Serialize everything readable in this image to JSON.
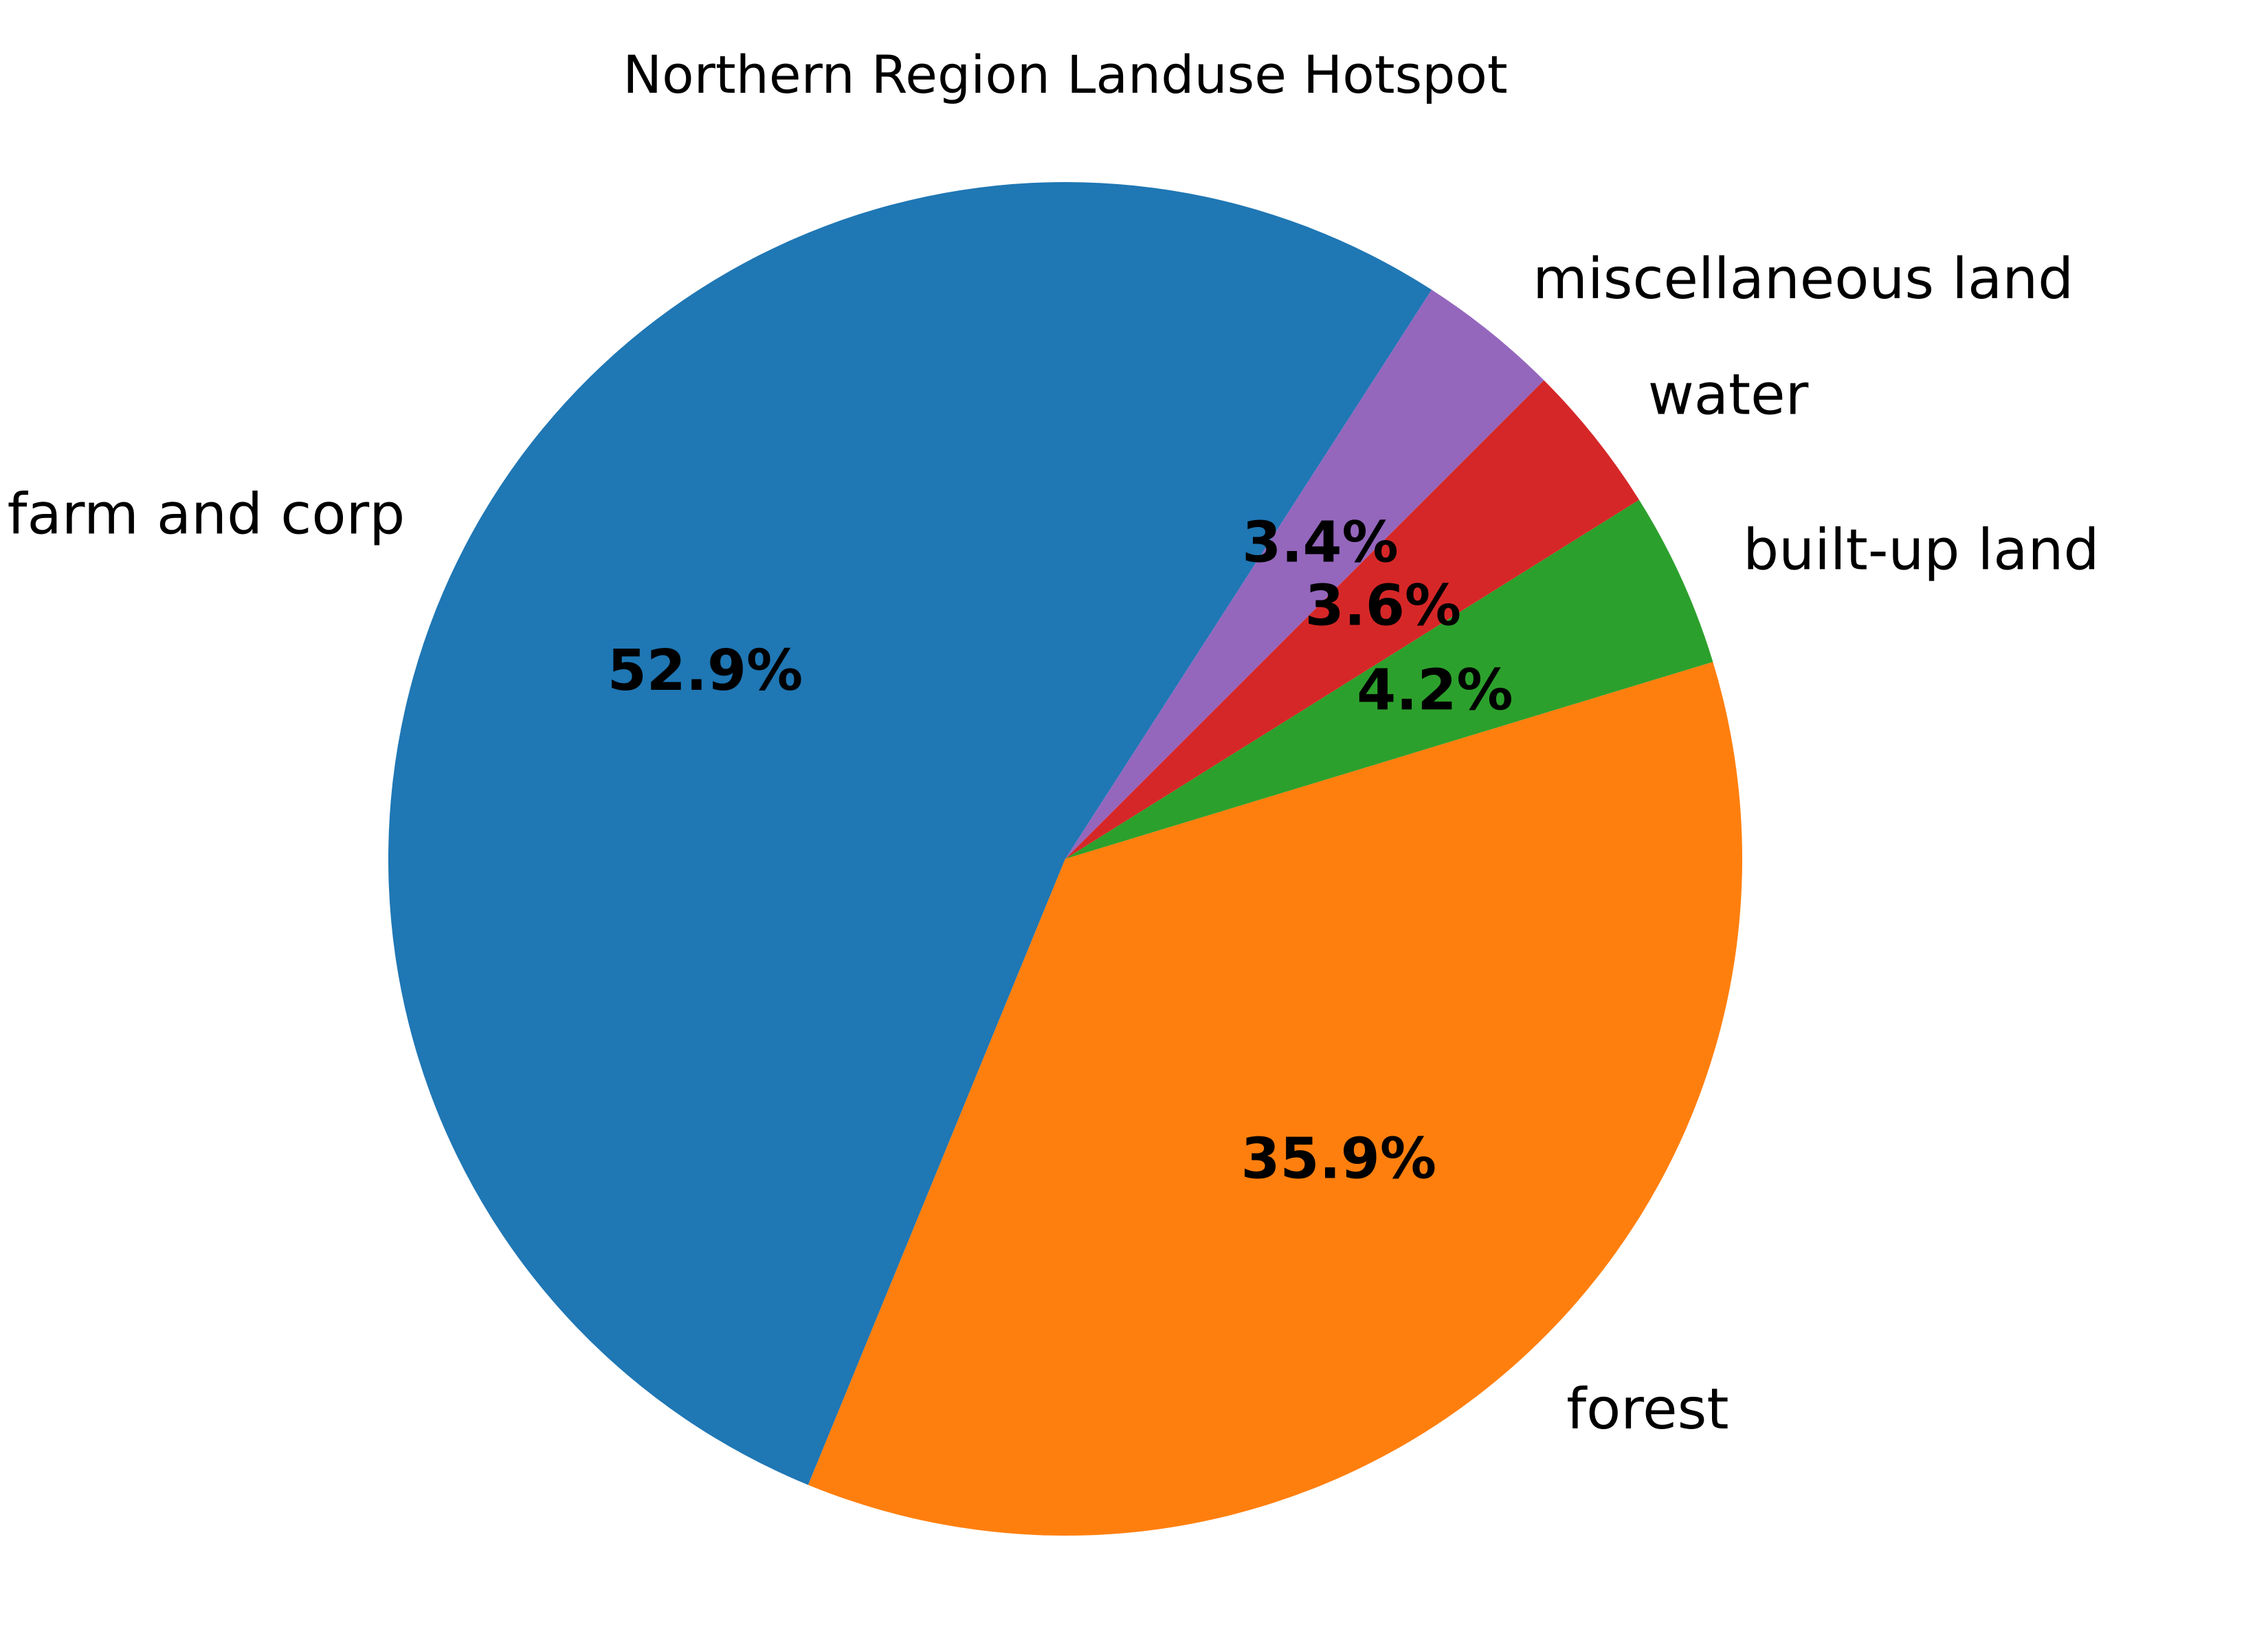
{
  "chart_data": {
    "type": "pie",
    "title": "Northern Region Landuse Hotspot",
    "start_angle_deg": 45,
    "direction": "counterclockwise",
    "slices": [
      {
        "label": "miscellaneous land",
        "value": 3.4,
        "pct_label": "3.4%",
        "color": "#9467bd"
      },
      {
        "label": "farm and corp",
        "value": 52.9,
        "pct_label": "52.9%",
        "color": "#1f77b4"
      },
      {
        "label": "forest",
        "value": 35.9,
        "pct_label": "35.9%",
        "color": "#ff7f0e"
      },
      {
        "label": "built-up land",
        "value": 4.2,
        "pct_label": "4.2%",
        "color": "#2ca02c"
      },
      {
        "label": "water",
        "value": 3.6,
        "pct_label": "3.6%",
        "color": "#d62728"
      }
    ]
  }
}
